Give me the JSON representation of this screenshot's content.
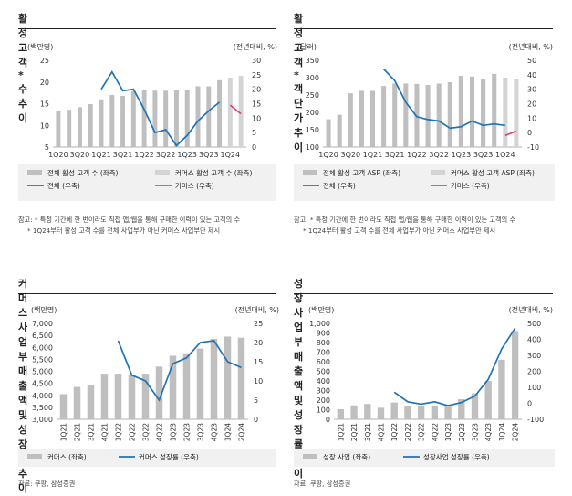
{
  "colors": {
    "bar_total": "#bfbfbf",
    "bar_commerce": "#d4d4d4",
    "line_total": "#1f73b7",
    "line_commerce": "#e0457b"
  },
  "panel_a": {
    "title": "활성 고객* 수 추이",
    "left_unit": "(백만명)",
    "right_unit": "(전년대비, %)",
    "legend": [
      "전체 활성 고객 수 (좌축)",
      "커머스 활성 고객 수 (좌축)",
      "전체 (우축)",
      "커머스 (우축)"
    ],
    "notes": [
      "참고: * 특정 기간에 한 번이라도 직접 앱/웹을 통해 구매한 이력이 있는 고객의 수",
      "* 1Q24부터 활성 고객 수를 전체 사업부가 아닌 커머스 사업부만 제시"
    ]
  },
  "panel_b": {
    "title": "활성 고객* 객단가 추이",
    "left_unit": "(달러)",
    "right_unit": "(전년대비, %)",
    "legend": [
      "전체 활성 고객 ASP (좌축)",
      "커머스 활성 고객 ASP (좌축)",
      "전체 (우축)",
      "커머스 (우축)"
    ],
    "notes": [
      "참고: * 특정 기간에 한 번이라도 직접 앱/웹을 통해 구매한 이력이 있는 고객의 수",
      "* 1Q24부터 활성 고객 수를 전체 사업부가 아닌 커머스 사업부만 제시"
    ]
  },
  "panel_c": {
    "title": "커머스 사업부 매출액 및 성장률 추이",
    "left_unit": "(백만명)",
    "right_unit": "(전년대비, %)",
    "legend": [
      "커머스 (좌축)",
      "커머스 성장률 (우축)"
    ],
    "notes": [
      "자료: 쿠팡, 삼성증권"
    ]
  },
  "panel_d": {
    "title": "성장 사업부 매출액 및 성장률 추이",
    "left_unit": "(백만명)",
    "right_unit": "(전년대비, %)",
    "legend": [
      "성장 사업 (좌축)",
      "성장사업 성장률 (우축)"
    ],
    "notes": [
      "자료: 쿠팡, 삼성증권"
    ]
  },
  "chart_data": [
    {
      "type": "bar",
      "title": "활성 고객* 수 추이",
      "categories": [
        "1Q20",
        "2Q20",
        "3Q20",
        "4Q20",
        "1Q21",
        "2Q21",
        "3Q21",
        "4Q21",
        "1Q22",
        "2Q22",
        "3Q22",
        "4Q22",
        "1Q23",
        "2Q23",
        "3Q23",
        "4Q23",
        "1Q24",
        "2Q24"
      ],
      "xtick_labels": [
        "1Q20",
        "",
        "3Q20",
        "",
        "1Q21",
        "",
        "3Q21",
        "",
        "1Q22",
        "",
        "3Q22",
        "",
        "1Q23",
        "",
        "3Q23",
        "",
        "1Q24",
        ""
      ],
      "ylim": [
        5,
        25
      ],
      "yticks": [
        5,
        10,
        15,
        20,
        25
      ],
      "ylim_right": [
        0,
        30
      ],
      "yticks_right": [
        0,
        5,
        10,
        15,
        20,
        25,
        30
      ],
      "series": [
        {
          "name": "전체 활성 고객 수 (좌축)",
          "axis": "left",
          "kind": "bar",
          "values": [
            13.3,
            13.6,
            14.2,
            14.9,
            16.0,
            17.0,
            16.8,
            17.9,
            18.1,
            18.0,
            18.0,
            18.1,
            18.1,
            19.0,
            19.0,
            20.4,
            null,
            null
          ]
        },
        {
          "name": "커머스 활성 고객 수 (좌축)",
          "axis": "left",
          "kind": "bar",
          "values": [
            null,
            null,
            null,
            null,
            null,
            null,
            null,
            null,
            null,
            null,
            null,
            null,
            null,
            null,
            null,
            null,
            21.0,
            21.4
          ]
        },
        {
          "name": "전체 (우축)",
          "axis": "right",
          "kind": "line",
          "values": [
            null,
            null,
            null,
            null,
            20,
            26,
            19.5,
            20,
            13,
            5,
            6,
            0.5,
            4,
            9,
            12.5,
            15.5,
            null,
            null
          ]
        },
        {
          "name": "커머스 (우축)",
          "axis": "right",
          "kind": "line",
          "values": [
            null,
            null,
            null,
            null,
            null,
            null,
            null,
            null,
            null,
            null,
            null,
            null,
            null,
            null,
            null,
            null,
            14.5,
            11.5
          ]
        }
      ]
    },
    {
      "type": "bar",
      "title": "활성 고객* 객단가 추이",
      "categories": [
        "1Q20",
        "2Q20",
        "3Q20",
        "4Q20",
        "1Q21",
        "2Q21",
        "3Q21",
        "4Q21",
        "1Q22",
        "2Q22",
        "3Q22",
        "4Q22",
        "1Q23",
        "2Q23",
        "3Q23",
        "4Q23",
        "1Q24",
        "2Q24"
      ],
      "xtick_labels": [
        "1Q20",
        "",
        "3Q20",
        "",
        "1Q21",
        "",
        "3Q21",
        "",
        "1Q22",
        "",
        "3Q22",
        "",
        "1Q23",
        "",
        "3Q23",
        "",
        "1Q24",
        ""
      ],
      "ylim": [
        100,
        350
      ],
      "yticks": [
        100,
        150,
        200,
        250,
        300,
        350
      ],
      "ylim_right": [
        -10,
        50
      ],
      "yticks_right": [
        -10,
        0,
        10,
        20,
        30,
        40,
        50
      ],
      "series": [
        {
          "name": "전체 활성 고객 ASP (좌축)",
          "axis": "left",
          "kind": "bar",
          "values": [
            180,
            193,
            255,
            262,
            262,
            276,
            283,
            283,
            282,
            279,
            283,
            287,
            305,
            303,
            295,
            311,
            null,
            null
          ]
        },
        {
          "name": "커머스 활성 고객 ASP (좌축)",
          "axis": "left",
          "kind": "bar",
          "values": [
            null,
            null,
            null,
            null,
            null,
            null,
            null,
            null,
            null,
            null,
            null,
            null,
            null,
            null,
            null,
            null,
            300,
            296
          ]
        },
        {
          "name": "전체 (우축)",
          "axis": "right",
          "kind": "line",
          "values": [
            null,
            null,
            null,
            null,
            null,
            44,
            36,
            21,
            11,
            9,
            8,
            3,
            4,
            8,
            5,
            6,
            5,
            null
          ]
        },
        {
          "name": "커머스 (우축)",
          "axis": "right",
          "kind": "line",
          "values": [
            null,
            null,
            null,
            null,
            null,
            null,
            null,
            null,
            null,
            null,
            null,
            null,
            null,
            null,
            null,
            null,
            -2,
            1
          ]
        }
      ]
    },
    {
      "type": "bar",
      "title": "커머스 사업부 매출액 및 성장률 추이",
      "categories": [
        "1Q21",
        "2Q21",
        "3Q21",
        "4Q21",
        "1Q22",
        "2Q22",
        "3Q22",
        "4Q22",
        "1Q23",
        "2Q23",
        "3Q23",
        "4Q23",
        "1Q24",
        "2Q24"
      ],
      "ylim": [
        3000,
        7000
      ],
      "yticks": [
        3000,
        3500,
        4000,
        4500,
        5000,
        5500,
        6000,
        6500,
        7000
      ],
      "ylim_right": [
        0,
        25
      ],
      "yticks_right": [
        0,
        5,
        10,
        15,
        20,
        25
      ],
      "series": [
        {
          "name": "커머스 (좌축)",
          "axis": "left",
          "kind": "bar",
          "values": [
            4050,
            4350,
            4450,
            4900,
            4900,
            4850,
            4900,
            5200,
            5650,
            5750,
            5950,
            6350,
            6450,
            6400
          ]
        },
        {
          "name": "커머스 성장률 (우축)",
          "axis": "right",
          "kind": "line",
          "values": [
            null,
            null,
            null,
            null,
            20.5,
            11.5,
            10,
            5,
            14.5,
            16,
            20,
            20.5,
            15,
            13.5
          ]
        }
      ]
    },
    {
      "type": "bar",
      "title": "성장 사업부 매출액 및 성장률 추이",
      "categories": [
        "1Q21",
        "2Q21",
        "3Q21",
        "4Q21",
        "1Q22",
        "2Q22",
        "3Q22",
        "4Q22",
        "1Q23",
        "2Q23",
        "3Q23",
        "4Q23",
        "1Q24",
        "2Q24"
      ],
      "ylim": [
        0,
        1000
      ],
      "yticks": [
        0,
        100,
        200,
        300,
        400,
        500,
        600,
        700,
        800,
        900,
        1000
      ],
      "ylim_right": [
        -100,
        500
      ],
      "yticks_right": [
        -100,
        0,
        100,
        200,
        300,
        400,
        500
      ],
      "series": [
        {
          "name": "성장 사업 (좌축)",
          "axis": "left",
          "kind": "bar",
          "values": [
            105,
            145,
            160,
            120,
            175,
            135,
            140,
            135,
            150,
            210,
            270,
            400,
            620,
            920
          ]
        },
        {
          "name": "성장사업 성장률 (우축)",
          "axis": "right",
          "kind": "line",
          "values": [
            null,
            null,
            null,
            null,
            70,
            10,
            -5,
            10,
            -15,
            5,
            45,
            150,
            340,
            470
          ]
        }
      ]
    }
  ]
}
